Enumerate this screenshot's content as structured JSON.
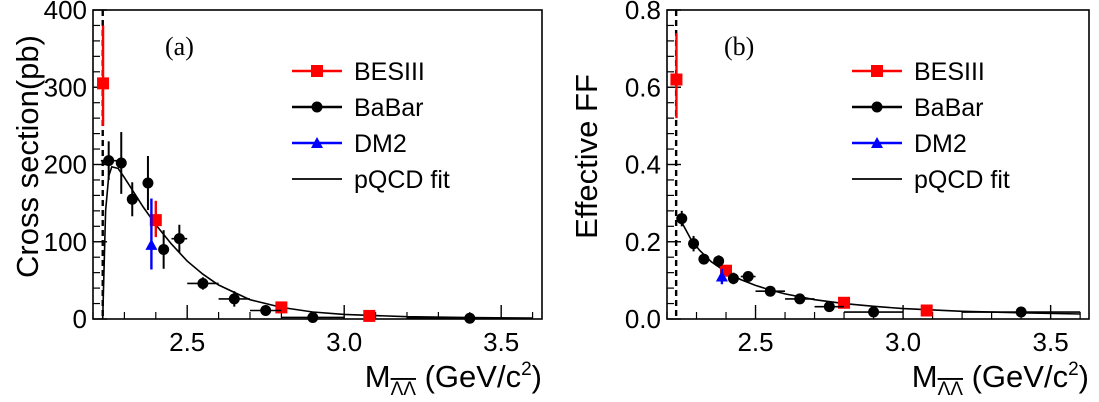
{
  "chart_data": [
    {
      "type": "scatter",
      "panel_label": "(a)",
      "xlabel": "M",
      "xlabel_sub": "ΛΛ",
      "xlabel_units": " (GeV/c",
      "xlabel_units_exp": "2",
      "xlabel_units_close": ")",
      "ylabel": "Cross section(pb)",
      "xlim": [
        2.2,
        3.63
      ],
      "ylim": [
        0,
        400
      ],
      "x_ticks": [
        {
          "value": 2.5,
          "label": "2.5"
        },
        {
          "value": 3.0,
          "label": "3.0"
        },
        {
          "value": 3.5,
          "label": "3.5"
        }
      ],
      "y_ticks": [
        {
          "value": 0,
          "label": "0"
        },
        {
          "value": 100,
          "label": "100"
        },
        {
          "value": 200,
          "label": "200"
        },
        {
          "value": 300,
          "label": "300"
        },
        {
          "value": 400,
          "label": "400"
        }
      ],
      "threshold_x": 2.231,
      "legend": [
        {
          "label": "BESIII",
          "marker": "square",
          "color": "#ff0000"
        },
        {
          "label": "BaBar",
          "marker": "circle",
          "color": "#000000"
        },
        {
          "label": "DM2",
          "marker": "triangle",
          "color": "#0000ff"
        },
        {
          "label": "pQCD fit",
          "marker": "line",
          "color": "#000000"
        }
      ],
      "series": [
        {
          "name": "BESIII",
          "color": "#ff0000",
          "marker": "square",
          "points": [
            {
              "x": 2.232,
              "y": 305,
              "yerr_lo": 55,
              "yerr_hi": 75
            },
            {
              "x": 2.4,
              "y": 128,
              "yerr_lo": 22,
              "yerr_hi": 25
            },
            {
              "x": 2.8,
              "y": 15,
              "yerr_lo": 3,
              "yerr_hi": 3
            },
            {
              "x": 3.08,
              "y": 4,
              "yerr_lo": 2,
              "yerr_hi": 2
            }
          ]
        },
        {
          "name": "BaBar",
          "color": "#000000",
          "marker": "circle",
          "points": [
            {
              "x": 2.25,
              "y": 205,
              "yerr_lo": 25,
              "yerr_hi": 25,
              "xerr": 0.025
            },
            {
              "x": 2.29,
              "y": 202,
              "yerr_lo": 40,
              "yerr_hi": 40,
              "xerr": 0.0
            },
            {
              "x": 2.325,
              "y": 155,
              "yerr_lo": 22,
              "yerr_hi": 22,
              "xerr": 0.0
            },
            {
              "x": 2.375,
              "y": 176,
              "yerr_lo": 35,
              "yerr_hi": 35,
              "xerr": 0.0
            },
            {
              "x": 2.425,
              "y": 90,
              "yerr_lo": 25,
              "yerr_hi": 25,
              "xerr": 0.0
            },
            {
              "x": 2.475,
              "y": 104,
              "yerr_lo": 18,
              "yerr_hi": 18,
              "xerr": 0.025
            },
            {
              "x": 2.55,
              "y": 46,
              "yerr_lo": 8,
              "yerr_hi": 8,
              "xerr": 0.05
            },
            {
              "x": 2.65,
              "y": 26,
              "yerr_lo": 10,
              "yerr_hi": 10,
              "xerr": 0.05
            },
            {
              "x": 2.75,
              "y": 11,
              "yerr_lo": 7,
              "yerr_hi": 7,
              "xerr": 0.05
            },
            {
              "x": 2.9,
              "y": 2,
              "yerr_lo": 2,
              "yerr_hi": 3,
              "xerr": 0.1
            },
            {
              "x": 3.4,
              "y": 1,
              "yerr_lo": 1,
              "yerr_hi": 1,
              "xerr": 0.2
            }
          ]
        },
        {
          "name": "DM2",
          "color": "#0000ff",
          "marker": "triangle",
          "points": [
            {
              "x": 2.386,
              "y": 96,
              "yerr_lo": 32,
              "yerr_hi": 60
            }
          ]
        }
      ],
      "fit_curve": {
        "name": "pQCD fit",
        "x": [
          2.231,
          2.24,
          2.25,
          2.26,
          2.28,
          2.3,
          2.33,
          2.36,
          2.4,
          2.45,
          2.5,
          2.55,
          2.6,
          2.7,
          2.8,
          2.9,
          3.0,
          3.2,
          3.4,
          3.6
        ],
        "y": [
          0,
          140,
          185,
          197,
          195,
          183,
          164,
          145,
          122,
          97,
          75,
          58,
          44,
          25,
          15,
          9,
          6,
          3,
          2,
          1
        ]
      }
    },
    {
      "type": "scatter",
      "panel_label": "(b)",
      "xlabel": "M",
      "xlabel_sub": "ΛΛ",
      "xlabel_units": " (GeV/c",
      "xlabel_units_exp": "2",
      "xlabel_units_close": ")",
      "ylabel": "Effective FF",
      "xlim": [
        2.2,
        3.63
      ],
      "ylim": [
        0,
        0.8
      ],
      "x_ticks": [
        {
          "value": 2.5,
          "label": "2.5"
        },
        {
          "value": 3.0,
          "label": "3.0"
        },
        {
          "value": 3.5,
          "label": "3.5"
        }
      ],
      "y_ticks": [
        {
          "value": 0,
          "label": "0.0"
        },
        {
          "value": 0.2,
          "label": "0.2"
        },
        {
          "value": 0.4,
          "label": "0.4"
        },
        {
          "value": 0.6,
          "label": "0.6"
        },
        {
          "value": 0.8,
          "label": "0.8"
        }
      ],
      "threshold_x": 2.231,
      "legend": [
        {
          "label": "BESIII",
          "marker": "square",
          "color": "#ff0000"
        },
        {
          "label": "BaBar",
          "marker": "circle",
          "color": "#000000"
        },
        {
          "label": "DM2",
          "marker": "triangle",
          "color": "#0000ff"
        },
        {
          "label": "pQCD fit",
          "marker": "line",
          "color": "#000000"
        }
      ],
      "series": [
        {
          "name": "BESIII",
          "color": "#ff0000",
          "marker": "square",
          "points": [
            {
              "x": 2.232,
              "y": 0.62,
              "yerr_lo": 0.1,
              "yerr_hi": 0.12
            },
            {
              "x": 2.4,
              "y": 0.125,
              "yerr_lo": 0.015,
              "yerr_hi": 0.015
            },
            {
              "x": 2.8,
              "y": 0.042,
              "yerr_lo": 0.005,
              "yerr_hi": 0.005
            },
            {
              "x": 3.08,
              "y": 0.022,
              "yerr_lo": 0.005,
              "yerr_hi": 0.005
            }
          ]
        },
        {
          "name": "BaBar",
          "color": "#000000",
          "marker": "circle",
          "points": [
            {
              "x": 2.25,
              "y": 0.26,
              "yerr_lo": 0.02,
              "yerr_hi": 0.02,
              "xerr": 0.015
            },
            {
              "x": 2.29,
              "y": 0.195,
              "yerr_lo": 0.02,
              "yerr_hi": 0.02,
              "xerr": 0.0
            },
            {
              "x": 2.325,
              "y": 0.155,
              "yerr_lo": 0.012,
              "yerr_hi": 0.012,
              "xerr": 0.0
            },
            {
              "x": 2.375,
              "y": 0.15,
              "yerr_lo": 0.015,
              "yerr_hi": 0.015,
              "xerr": 0.0
            },
            {
              "x": 2.425,
              "y": 0.105,
              "yerr_lo": 0.015,
              "yerr_hi": 0.015,
              "xerr": 0.0
            },
            {
              "x": 2.475,
              "y": 0.11,
              "yerr_lo": 0.01,
              "yerr_hi": 0.01,
              "xerr": 0.025
            },
            {
              "x": 2.55,
              "y": 0.072,
              "yerr_lo": 0.007,
              "yerr_hi": 0.007,
              "xerr": 0.05
            },
            {
              "x": 2.65,
              "y": 0.052,
              "yerr_lo": 0.008,
              "yerr_hi": 0.008,
              "xerr": 0.05
            },
            {
              "x": 2.75,
              "y": 0.032,
              "yerr_lo": 0.012,
              "yerr_hi": 0.012,
              "xerr": 0.05
            },
            {
              "x": 2.9,
              "y": 0.018,
              "yerr_lo": 0.01,
              "yerr_hi": 0.01,
              "xerr": 0.1
            },
            {
              "x": 3.4,
              "y": 0.018,
              "yerr_lo": 0.008,
              "yerr_hi": 0.008,
              "xerr": 0.2
            }
          ]
        },
        {
          "name": "DM2",
          "color": "#0000ff",
          "marker": "triangle",
          "points": [
            {
              "x": 2.386,
              "y": 0.11,
              "yerr_lo": 0.02,
              "yerr_hi": 0.02
            }
          ]
        }
      ],
      "fit_curve": {
        "name": "pQCD fit",
        "x": [
          2.25,
          2.28,
          2.31,
          2.35,
          2.4,
          2.45,
          2.5,
          2.55,
          2.6,
          2.7,
          2.8,
          2.9,
          3.0,
          3.2,
          3.4,
          3.6
        ],
        "y": [
          0.25,
          0.208,
          0.178,
          0.148,
          0.122,
          0.102,
          0.087,
          0.075,
          0.065,
          0.05,
          0.04,
          0.033,
          0.027,
          0.02,
          0.016,
          0.013
        ]
      }
    }
  ]
}
